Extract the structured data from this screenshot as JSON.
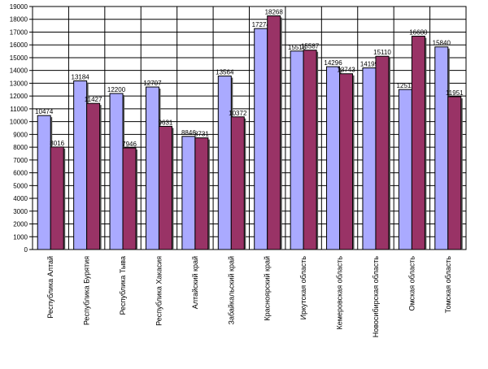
{
  "chart_data": {
    "type": "bar",
    "title": "",
    "xlabel": "",
    "ylabel": "",
    "ylim": [
      0,
      19000
    ],
    "ytick_step": 1000,
    "grid": true,
    "legend": "none",
    "categories": [
      "Республика Алтай",
      "Республика Бурятия",
      "Республика Тыва",
      "Республика Хакасия",
      "Алтайский край",
      "Забайкальский край",
      "Красноярский край",
      "Иркутская область",
      "Кемеровская область",
      "Новосибирская  область",
      "Омская  область",
      "Томская область"
    ],
    "series": [
      {
        "color": "#aaaaff",
        "values": [
          10474,
          13184,
          12200,
          12707,
          8846,
          13564,
          17274,
          15518,
          14296,
          14199,
          12511,
          15840
        ]
      },
      {
        "color": "#993366",
        "values": [
          8016,
          11427,
          7946,
          9631,
          8731,
          10372,
          18268,
          15587,
          13743,
          15110,
          16680,
          11951
        ]
      }
    ]
  }
}
